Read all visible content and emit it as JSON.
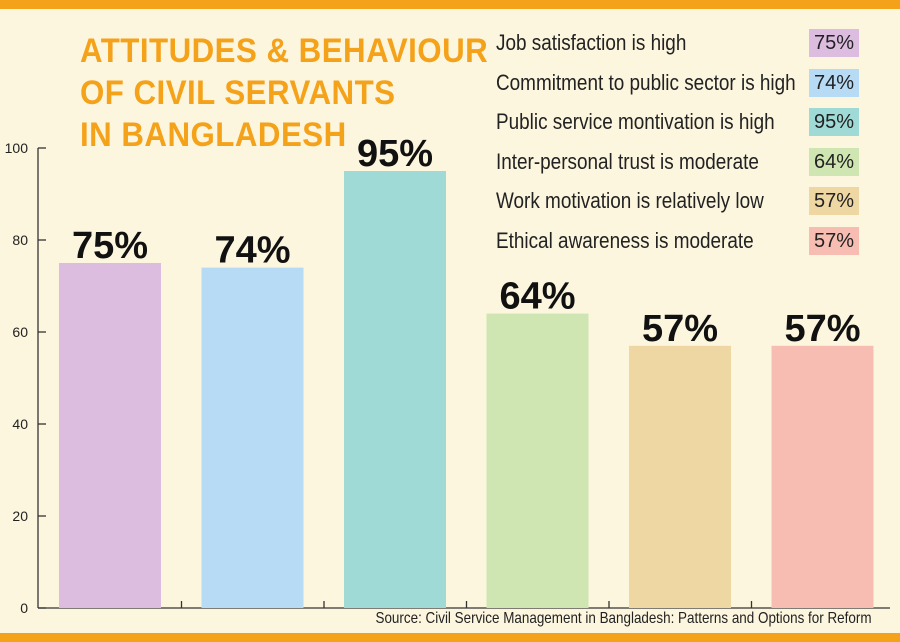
{
  "header": {
    "title_lines": [
      "ATTITUDES & BEHAVIOUR",
      "OF CIVIL SERVANTS",
      "IN BANGLADESH"
    ]
  },
  "legend": [
    {
      "label": "Job satisfaction is high",
      "value": "75%",
      "color": "#dcbde0"
    },
    {
      "label": "Commitment to public sector is high",
      "value": "74%",
      "color": "#b7dbf5"
    },
    {
      "label": "Public service montivation is high",
      "value": "95%",
      "color": "#9fdad6"
    },
    {
      "label": "Inter-personal trust is moderate",
      "value": "64%",
      "color": "#cfe6b2"
    },
    {
      "label": "Work motivation is relatively low",
      "value": "57%",
      "color": "#efd7a4"
    },
    {
      "label": "Ethical awareness is moderate",
      "value": "57%",
      "color": "#f7bdb2"
    }
  ],
  "source": "Source: Civil Service Management in Bangladesh: Patterns and Options for Reform",
  "chart_data": {
    "type": "bar",
    "title": "ATTITUDES & BEHAVIOUR OF CIVIL SERVANTS IN BANGLADESH",
    "categories": [
      "Job satisfaction is high",
      "Commitment to public sector is high",
      "Public service montivation is high",
      "Inter-personal trust is moderate",
      "Work motivation is relatively low",
      "Ethical awareness is moderate"
    ],
    "values": [
      75,
      74,
      95,
      64,
      57,
      57
    ],
    "data_labels": [
      "75%",
      "74%",
      "95%",
      "64%",
      "57%",
      "57%"
    ],
    "colors": [
      "#dcbde0",
      "#b7dbf5",
      "#9fdad6",
      "#cfe6b2",
      "#efd7a4",
      "#f7bdb2"
    ],
    "ylim": [
      0,
      100
    ],
    "yticks": [
      0,
      20,
      40,
      60,
      80,
      100
    ],
    "xlabel": "",
    "ylabel": "",
    "grid": false,
    "legend_position": "top-right"
  }
}
